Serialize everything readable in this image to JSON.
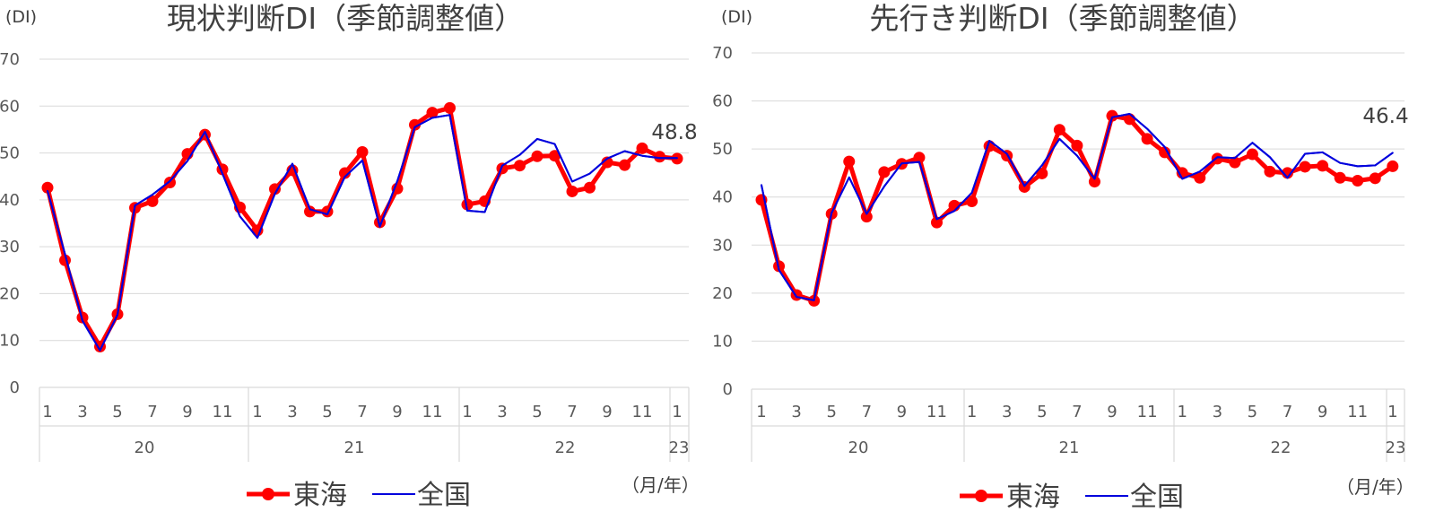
{
  "chart_data": [
    {
      "type": "line",
      "title": "現状判断DI（季節調整値）",
      "ylabel": "(DI)",
      "xlabel": "（月/年）",
      "ylim": [
        0,
        70
      ],
      "yticks": [
        0,
        10,
        20,
        30,
        40,
        50,
        60,
        70
      ],
      "grid": true,
      "legend_position": "bottom",
      "x_month_labels": [
        "1",
        "3",
        "5",
        "7",
        "9",
        "11",
        "1",
        "3",
        "5",
        "7",
        "9",
        "11",
        "1",
        "3",
        "5",
        "7",
        "9",
        "11",
        "1"
      ],
      "years": [
        "20",
        "21",
        "22",
        "23"
      ],
      "end_label": "48.8",
      "series": [
        {
          "name": "東海",
          "color": "#ff0000",
          "marker": "circle",
          "values": [
            42.6,
            27.1,
            14.9,
            8.7,
            15.6,
            38.3,
            39.7,
            43.7,
            49.8,
            53.9,
            46.5,
            38.4,
            33.5,
            42.3,
            46.3,
            37.5,
            37.5,
            45.7,
            50.2,
            35.2,
            42.4,
            56.0,
            58.6,
            59.6,
            39.0,
            39.7,
            46.7,
            47.3,
            49.3,
            49.4,
            41.8,
            42.6,
            48.0,
            47.4,
            51.0,
            49.2,
            48.8
          ]
        },
        {
          "name": "全国",
          "color": "#0000dd",
          "marker": "none",
          "values": [
            41.9,
            28.4,
            14.2,
            7.9,
            15.5,
            38.8,
            41.1,
            44.0,
            48.3,
            54.5,
            45.6,
            36.5,
            31.9,
            41.3,
            47.7,
            38.0,
            36.9,
            44.9,
            48.4,
            34.3,
            44.0,
            55.5,
            57.5,
            58.1,
            37.7,
            37.4,
            47.3,
            49.6,
            53.0,
            51.9,
            43.9,
            45.6,
            48.8,
            50.4,
            49.4,
            48.9,
            48.9
          ]
        }
      ]
    },
    {
      "type": "line",
      "title": "先行き判断DI（季節調整値）",
      "ylabel": "(DI)",
      "xlabel": "（月/年）",
      "ylim": [
        0,
        70
      ],
      "yticks": [
        0,
        10,
        20,
        30,
        40,
        50,
        60,
        70
      ],
      "grid": true,
      "legend_position": "bottom",
      "x_month_labels": [
        "1",
        "3",
        "5",
        "7",
        "9",
        "11",
        "1",
        "3",
        "5",
        "7",
        "9",
        "11",
        "1",
        "3",
        "5",
        "7",
        "9",
        "11",
        "1"
      ],
      "years": [
        "20",
        "21",
        "22",
        "23"
      ],
      "end_label": "46.4",
      "series": [
        {
          "name": "東海",
          "color": "#ff0000",
          "marker": "circle",
          "values": [
            39.4,
            25.6,
            19.6,
            18.4,
            36.5,
            47.4,
            35.9,
            45.2,
            46.9,
            48.2,
            34.7,
            38.2,
            39.1,
            50.6,
            48.6,
            42.1,
            44.9,
            54.0,
            50.7,
            43.2,
            56.9,
            56.2,
            52.1,
            49.3,
            45.0,
            44.0,
            48.0,
            47.2,
            48.9,
            45.3,
            45.0,
            46.3,
            46.5,
            44.0,
            43.4,
            43.9,
            46.4
          ]
        },
        {
          "name": "全国",
          "color": "#0000dd",
          "marker": "none",
          "values": [
            42.5,
            24.8,
            19.2,
            18.5,
            36.7,
            44.1,
            36.5,
            42.2,
            47.0,
            47.3,
            35.4,
            37.1,
            40.9,
            51.7,
            49.0,
            42.3,
            46.6,
            52.1,
            48.6,
            43.8,
            56.6,
            57.3,
            54.2,
            50.4,
            43.8,
            45.3,
            48.3,
            48.1,
            51.3,
            48.3,
            44.0,
            49.0,
            49.3,
            47.1,
            46.4,
            46.6,
            49.2
          ]
        }
      ]
    }
  ]
}
